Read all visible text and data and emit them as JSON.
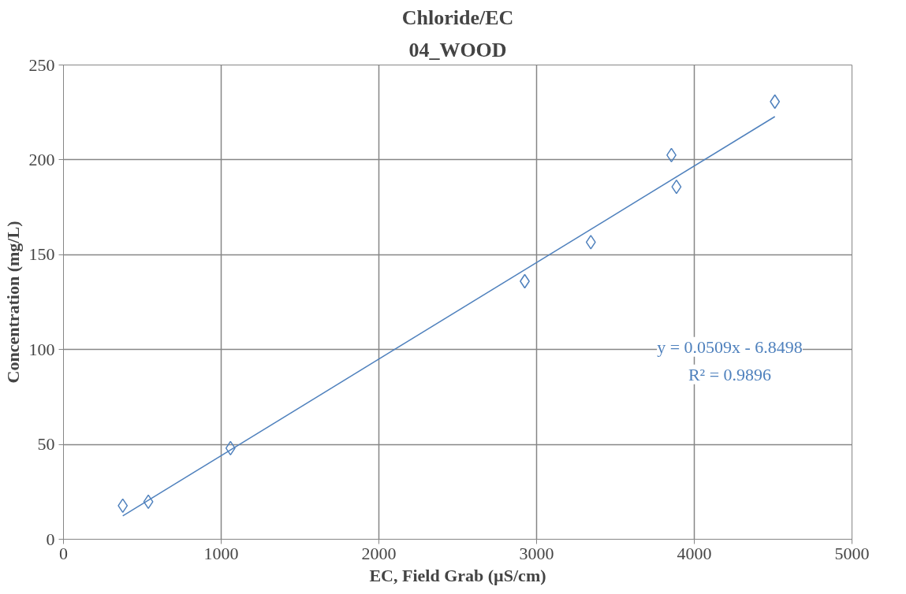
{
  "chart_data": {
    "type": "scatter",
    "title": "Chloride/EC",
    "subtitle": "04_WOOD",
    "xlabel": "EC, Field Grab (µS/cm)",
    "ylabel": "Concentration (mg/L)",
    "xlim": [
      0,
      5000
    ],
    "xticks": [
      0,
      1000,
      2000,
      3000,
      4000,
      5000
    ],
    "ylim": [
      0,
      250
    ],
    "yticks": [
      0,
      50,
      100,
      150,
      200,
      250
    ],
    "grid": true,
    "series": [
      {
        "color": "#4f81bd",
        "marker": "diamond",
        "x": [
          376,
          538,
          1059,
          2925,
          3344,
          3855,
          3887,
          4511
        ],
        "values": [
          17.7,
          19.8,
          48,
          136,
          156.6,
          202.5,
          185.8,
          230.7
        ]
      },
      {
        "type": "line",
        "color": "#4f81bd",
        "marker": "none",
        "x": [
          376,
          4511
        ],
        "values": [
          12.3,
          222.8
        ]
      }
    ],
    "annotations": [
      "y = 0.0509x - 6.8498",
      "R² = 0.9896"
    ]
  }
}
